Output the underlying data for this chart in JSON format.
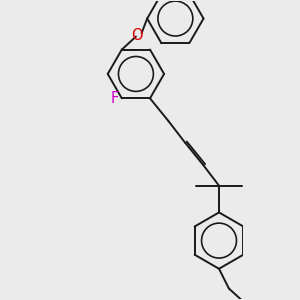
{
  "bg_color": "#ebebeb",
  "bond_color": "#1a1a1a",
  "F_color": "#cc00cc",
  "O_color": "#dd0000",
  "line_width": 1.4,
  "font_size": 10.5,
  "fig_w": 3.0,
  "fig_h": 3.0,
  "dpi": 100
}
